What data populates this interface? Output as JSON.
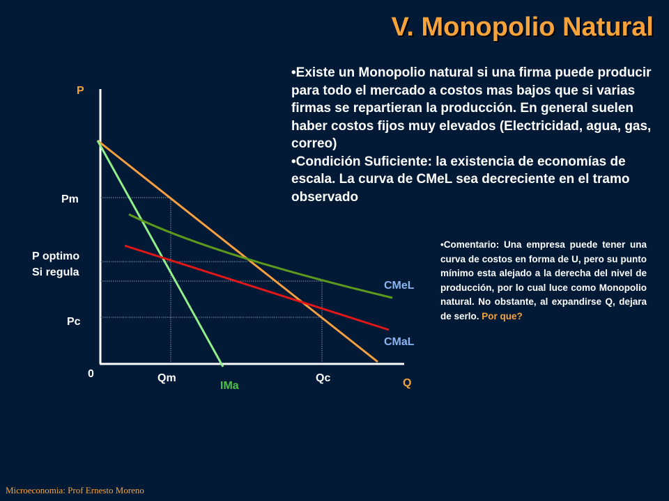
{
  "title": "V. Monopolio Natural",
  "bullets": [
    "•Existe un Monopolio natural si una firma puede producir para todo el mercado a costos mas bajos que si varias firmas se repartieran la producción. En general suelen haber costos fijos muy elevados (Electricidad, agua, gas, correo)",
    "•Condición Suficiente: la existencia de economías de escala. La curva de CMeL sea decreciente en el tramo observado"
  ],
  "comment": {
    "text": "•Comentario: Una empresa puede tener una curva de costos en forma de U, pero su punto mínimo esta alejado a la derecha del nivel de producción, por lo cual luce como Monopolio natural. No obstante, al expandirse Q, dejara de serlo.",
    "highlight": "Por que?"
  },
  "graph": {
    "axis_y_label": "P",
    "axis_x_label": "Q",
    "origin_label": "0",
    "y_labels": {
      "pm": "Pm",
      "p_optimo_1": "P optimo",
      "p_optimo_2": "Si regula",
      "pc": "Pc"
    },
    "x_labels": {
      "qm": "Qm",
      "qc": "Qc"
    },
    "curve_labels": {
      "cmel": "CMeL",
      "cmal": "CMaL",
      "ima": "IMa"
    },
    "colors": {
      "demand": "#f7a040",
      "ima": "#90f08a",
      "cmel": "#5c9a1c",
      "cmal": "#e01818",
      "axis_label": "#f7a33b",
      "curve_label": "#8ab4f0",
      "ima_label": "#4ec04a"
    }
  },
  "footer": "Microeconomia:  Prof Ernesto Moreno"
}
